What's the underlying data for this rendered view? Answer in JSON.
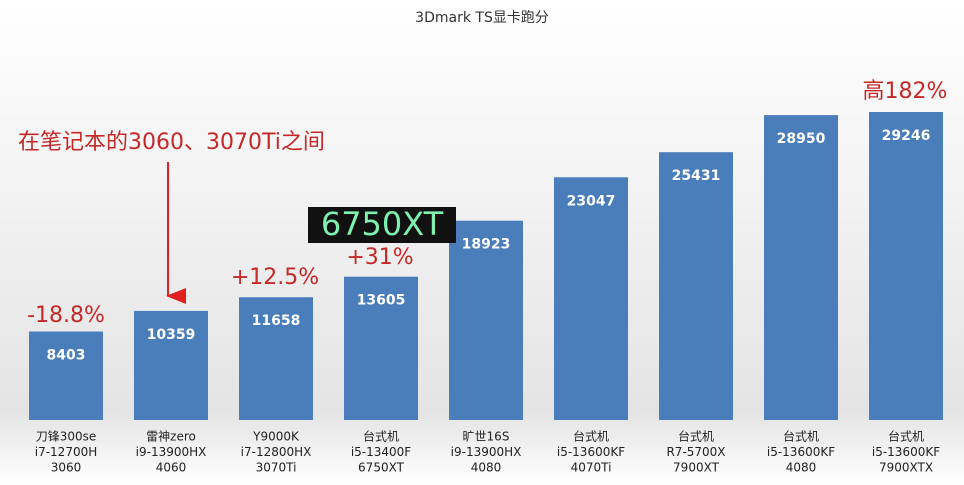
{
  "chart_data": {
    "type": "bar",
    "title": "3Dmark TS显卡跑分",
    "categories": [
      [
        "刀锋300se",
        "i7-12700H",
        "3060"
      ],
      [
        "雷神zero",
        "i9-13900HX",
        "4060"
      ],
      [
        "Y9000K",
        "i7-12800HX",
        "3070Ti"
      ],
      [
        "台式机",
        "i5-13400F",
        "6750XT"
      ],
      [
        "旷世16S",
        "i9-13900HX",
        "4080"
      ],
      [
        "台式机",
        "i5-13600KF",
        "4070Ti"
      ],
      [
        "台式机",
        "R7-5700X",
        "7900XT"
      ],
      [
        "台式机",
        "i5-13600KF",
        "4080"
      ],
      [
        "台式机",
        "i5-13600KF",
        "7900XTX"
      ]
    ],
    "values": [
      8403,
      10359,
      11658,
      13605,
      18923,
      23047,
      25431,
      28950,
      29246
    ],
    "color": "#4a7ebb",
    "annotations": [
      "-18.8%",
      "在笔记本的3060、3070Ti之间",
      "+12.5%",
      "+31%",
      "6750XT",
      "高182%"
    ]
  }
}
